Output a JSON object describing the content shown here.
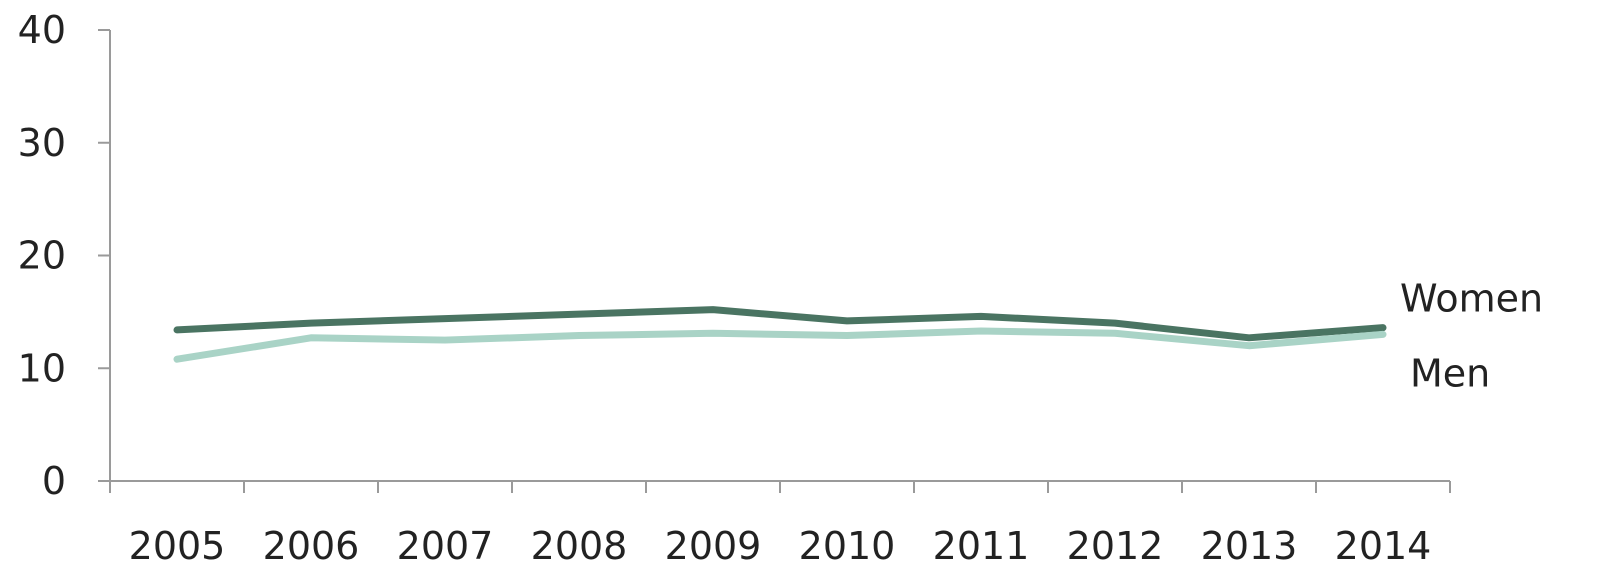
{
  "chart_data": {
    "type": "line",
    "title": "",
    "xlabel": "",
    "ylabel": "",
    "categories": [
      "2005",
      "2006",
      "2007",
      "2008",
      "2009",
      "2010",
      "2011",
      "2012",
      "2013",
      "2014"
    ],
    "ylim": [
      0,
      40
    ],
    "yticks": [
      0,
      10,
      20,
      30,
      40
    ],
    "grid": false,
    "series": [
      {
        "name": "Women",
        "values": [
          13.4,
          14.0,
          14.4,
          14.8,
          15.2,
          14.2,
          14.6,
          14.0,
          12.7,
          13.6
        ],
        "color": "#4a7462"
      },
      {
        "name": "Men",
        "values": [
          10.8,
          12.7,
          12.5,
          12.9,
          13.1,
          12.9,
          13.3,
          13.1,
          12.0,
          13.0
        ],
        "color": "#a9d3c6"
      }
    ]
  }
}
